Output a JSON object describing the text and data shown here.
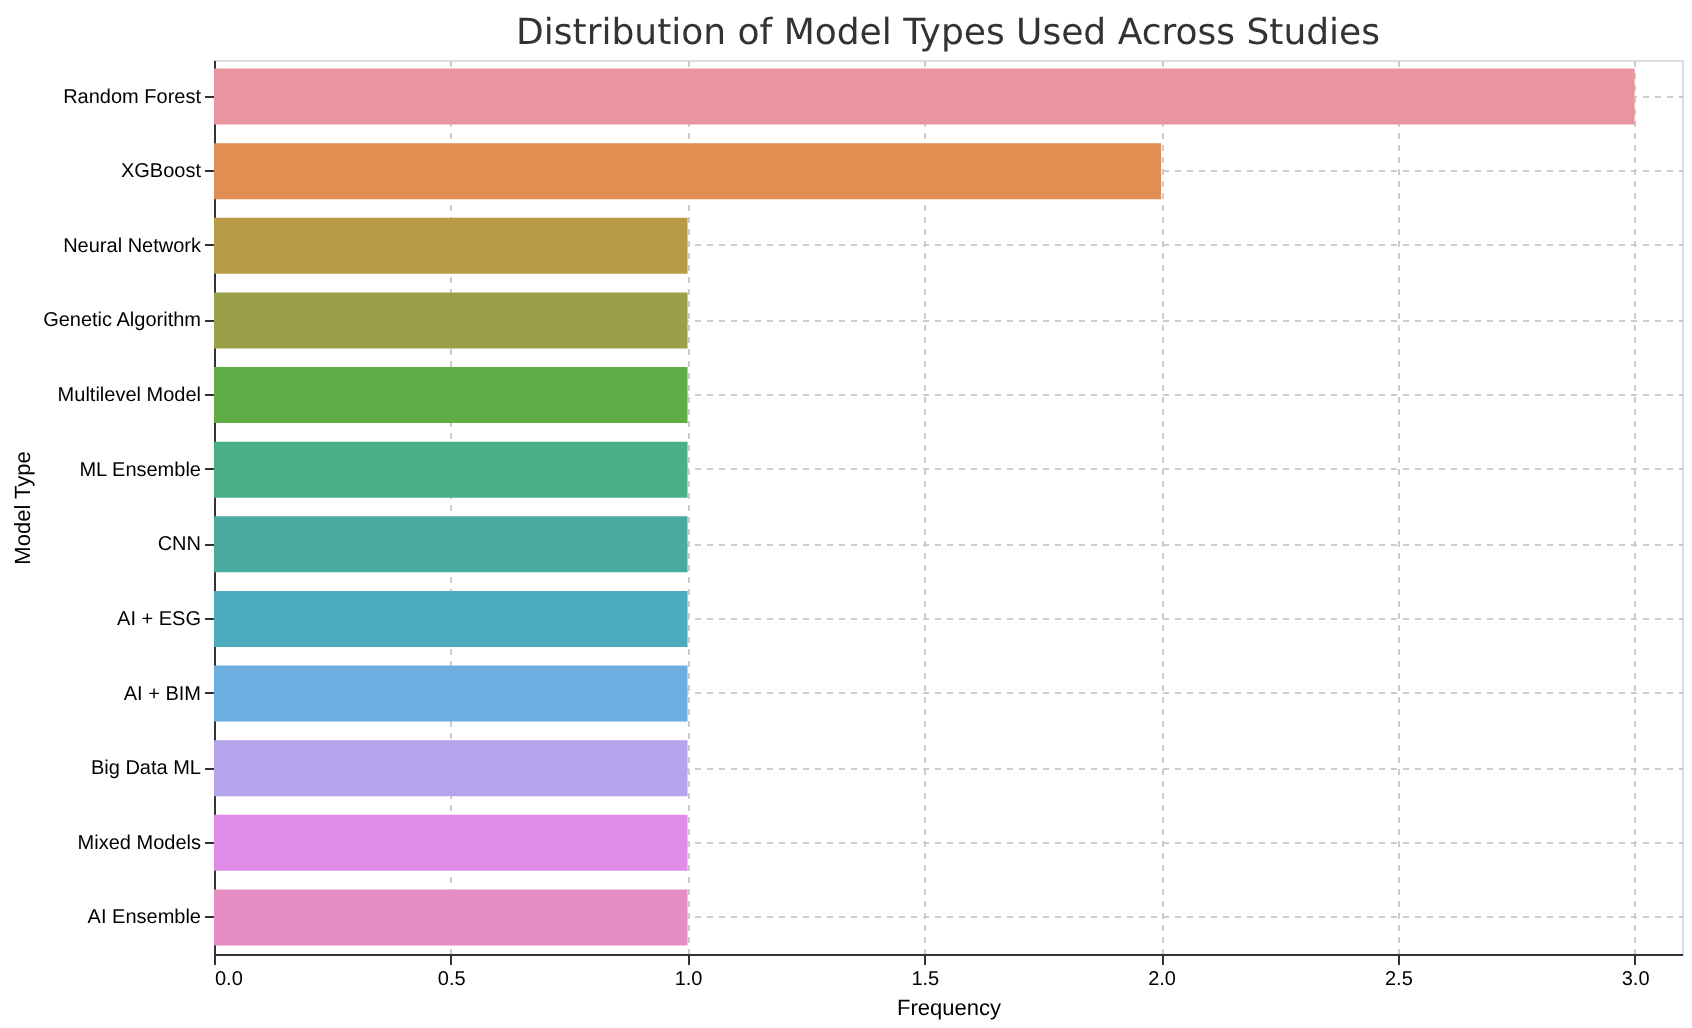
{
  "chart_data": {
    "type": "bar",
    "orientation": "horizontal",
    "title": "Distribution of Model Types Used Across Studies",
    "xlabel": "Frequency",
    "ylabel": "Model Type",
    "categories": [
      "Random Forest",
      "XGBoost",
      "Neural Network",
      "Genetic Algorithm",
      "Multilevel Model",
      "ML Ensemble",
      "CNN",
      "AI + ESG",
      "AI + BIM",
      "Big Data ML",
      "Mixed Models",
      "AI Ensemble"
    ],
    "values": [
      3,
      2,
      1,
      1,
      1,
      1,
      1,
      1,
      1,
      1,
      1,
      1
    ],
    "colors": [
      "#e9959f",
      "#e08e52",
      "#b89a48",
      "#9aa048",
      "#5fad47",
      "#4aae86",
      "#4aaa9e",
      "#4cabbd",
      "#6caee0",
      "#b5a3eb",
      "#de8ce8",
      "#e68dc3"
    ],
    "xlim": [
      0,
      3.1
    ],
    "xticks": [
      {
        "value": 0,
        "label": "0.0"
      },
      {
        "value": 0.5,
        "label": "0.5"
      },
      {
        "value": 1,
        "label": "1.0"
      },
      {
        "value": 1.5,
        "label": "1.5"
      },
      {
        "value": 2,
        "label": "2.0"
      },
      {
        "value": 2.5,
        "label": "2.5"
      },
      {
        "value": 3,
        "label": "3.0"
      }
    ],
    "grid": true,
    "legend": false
  }
}
